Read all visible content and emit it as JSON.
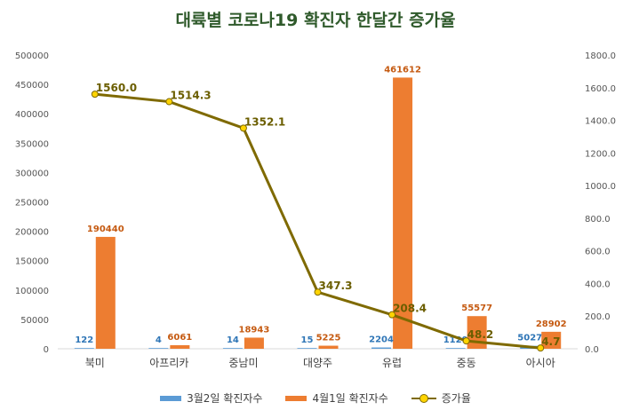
{
  "chart_data": {
    "type": "bar",
    "title": "대륙별 코로나19 확진자 한달간 증가율",
    "categories": [
      "북미",
      "아프리카",
      "중남미",
      "대양주",
      "유럽",
      "중동",
      "아시아"
    ],
    "series": [
      {
        "name": "3월2일 확진자수",
        "type": "bar",
        "axis": "left",
        "color": "#5b9bd5",
        "values": [
          122,
          4,
          14,
          15,
          2204,
          1129,
          5027
        ]
      },
      {
        "name": "4월1일 확진자수",
        "type": "bar",
        "axis": "left",
        "color": "#ed7d31",
        "values": [
          190440,
          6061,
          18943,
          5225,
          461612,
          55577,
          28902
        ]
      },
      {
        "name": "증가율",
        "type": "line",
        "axis": "right",
        "color": "#7f6a00",
        "values": [
          1560.0,
          1514.3,
          1352.1,
          347.3,
          208.4,
          48.2,
          4.7
        ]
      }
    ],
    "ylim": [
      0,
      500000
    ],
    "y2lim": [
      0,
      1800
    ],
    "yticks": [
      "0",
      "50000",
      "100000",
      "150000",
      "200000",
      "250000",
      "300000",
      "350000",
      "400000",
      "450000",
      "500000"
    ],
    "y2ticks": [
      "0.0",
      "200.0",
      "400.0",
      "600.0",
      "800.0",
      "1000.0",
      "1200.0",
      "1400.0",
      "1600.0",
      "1800.0"
    ],
    "line_labels": [
      "1560.0",
      "1514.3",
      "1352.1",
      "347.3",
      "208.4",
      "48.2",
      "4.7"
    ],
    "grid": false,
    "legend": "bottom"
  }
}
